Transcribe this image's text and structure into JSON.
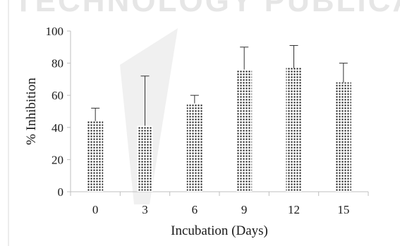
{
  "watermark": {
    "text": "SCIENCE AND TECHNOLOGY PUBLICATIONS"
  },
  "chart_data": {
    "type": "bar",
    "title": "",
    "xlabel": "Incubation (Days)",
    "ylabel": "% Inhibition",
    "categories": [
      "0",
      "3",
      "6",
      "9",
      "12",
      "15"
    ],
    "values": [
      44,
      41,
      55,
      76,
      77,
      68
    ],
    "error_upper": [
      8,
      31,
      5,
      14,
      14,
      12
    ],
    "ylim": [
      0,
      100
    ],
    "yticks": [
      "0",
      "20",
      "40",
      "60",
      "80",
      "100"
    ],
    "grid": false,
    "legend": "none",
    "bar_pattern": "dotted",
    "colors": {
      "dots": "#111111",
      "axis": "#bfbfbf",
      "error": "#333333"
    }
  }
}
